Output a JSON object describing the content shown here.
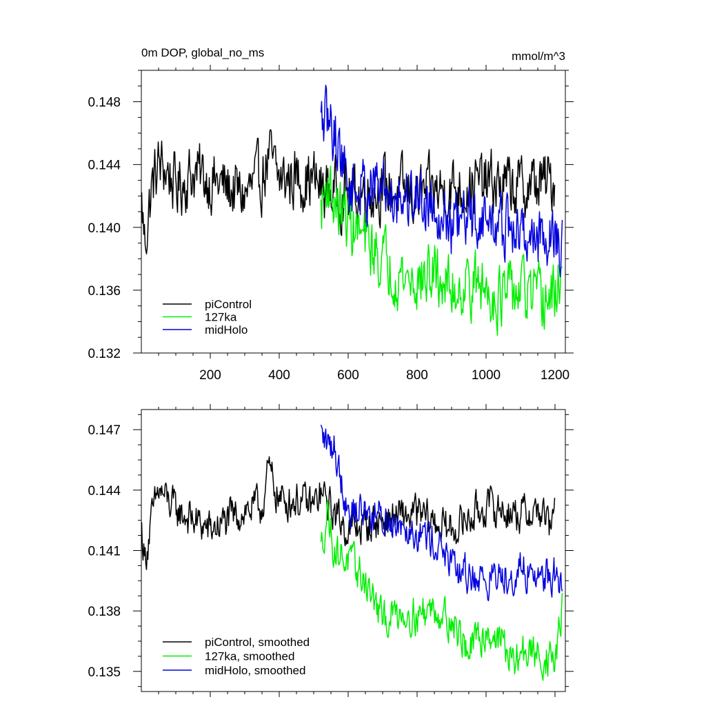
{
  "chart_data": [
    {
      "type": "line",
      "title": "0m DOP, global_no_ms",
      "units_label": "mmol/m^3",
      "xlim": [
        0,
        1230
      ],
      "ylim": [
        0.132,
        0.15
      ],
      "x_ticks": [
        200,
        400,
        600,
        800,
        1000,
        1200
      ],
      "x_tick_labels": [
        "200",
        "400",
        "600",
        "800",
        "1000",
        "1200"
      ],
      "y_ticks": [
        0.132,
        0.136,
        0.14,
        0.144,
        0.148
      ],
      "y_tick_labels": [
        "0.132",
        "0.136",
        "0.140",
        "0.144",
        "0.148"
      ],
      "legend_position": "bottom-left",
      "series": [
        {
          "name": "piControl",
          "color": "#000000",
          "noise": 0.0017,
          "points": [
            [
              1,
              0.1415
            ],
            [
              10,
              0.139
            ],
            [
              30,
              0.1425
            ],
            [
              50,
              0.144
            ],
            [
              80,
              0.1435
            ],
            [
              100,
              0.1425
            ],
            [
              150,
              0.1435
            ],
            [
              200,
              0.143
            ],
            [
              250,
              0.1425
            ],
            [
              300,
              0.142
            ],
            [
              350,
              0.1432
            ],
            [
              370,
              0.1445
            ],
            [
              400,
              0.143
            ],
            [
              450,
              0.1432
            ],
            [
              500,
              0.143
            ],
            [
              520,
              0.1425
            ],
            [
              600,
              0.142
            ],
            [
              700,
              0.1425
            ],
            [
              800,
              0.142
            ],
            [
              900,
              0.1425
            ],
            [
              1000,
              0.1428
            ],
            [
              1100,
              0.1425
            ],
            [
              1200,
              0.143
            ]
          ]
        },
        {
          "name": "127ka",
          "color": "#00ee00",
          "noise": 0.0017,
          "points": [
            [
              521,
              0.141
            ],
            [
              540,
              0.143
            ],
            [
              560,
              0.1415
            ],
            [
              600,
              0.1405
            ],
            [
              650,
              0.139
            ],
            [
              700,
              0.138
            ],
            [
              750,
              0.137
            ],
            [
              800,
              0.1365
            ],
            [
              850,
              0.137
            ],
            [
              900,
              0.136
            ],
            [
              950,
              0.1365
            ],
            [
              1000,
              0.136
            ],
            [
              1050,
              0.1355
            ],
            [
              1100,
              0.136
            ],
            [
              1150,
              0.1352
            ],
            [
              1200,
              0.1355
            ],
            [
              1222,
              0.1378
            ]
          ]
        },
        {
          "name": "midHolo",
          "color": "#0000dd",
          "noise": 0.0017,
          "points": [
            [
              521,
              0.1465
            ],
            [
              540,
              0.1468
            ],
            [
              560,
              0.146
            ],
            [
              580,
              0.1448
            ],
            [
              600,
              0.1425
            ],
            [
              650,
              0.1425
            ],
            [
              700,
              0.1425
            ],
            [
              750,
              0.142
            ],
            [
              800,
              0.142
            ],
            [
              850,
              0.1415
            ],
            [
              880,
              0.141
            ],
            [
              900,
              0.14
            ],
            [
              950,
              0.1405
            ],
            [
              1000,
              0.1405
            ],
            [
              1050,
              0.14
            ],
            [
              1100,
              0.1395
            ],
            [
              1150,
              0.1395
            ],
            [
              1200,
              0.1395
            ],
            [
              1222,
              0.1385
            ]
          ]
        }
      ]
    },
    {
      "type": "line",
      "xlim": [
        0,
        1230
      ],
      "ylim": [
        0.134,
        0.148
      ],
      "x_ticks": [
        200,
        400,
        600,
        800,
        1000,
        1200
      ],
      "x_tick_labels": [],
      "y_ticks": [
        0.135,
        0.138,
        0.141,
        0.144,
        0.147
      ],
      "y_tick_labels": [
        "0.135",
        "0.138",
        "0.141",
        "0.144",
        "0.147"
      ],
      "legend_position": "bottom-left",
      "series": [
        {
          "name": "piControl, smoothed",
          "color": "#000000",
          "noise": 0.0008,
          "points": [
            [
              1,
              0.142
            ],
            [
              10,
              0.1405
            ],
            [
              30,
              0.1425
            ],
            [
              50,
              0.144
            ],
            [
              100,
              0.143
            ],
            [
              150,
              0.1425
            ],
            [
              200,
              0.142
            ],
            [
              250,
              0.1425
            ],
            [
              300,
              0.143
            ],
            [
              350,
              0.1432
            ],
            [
              370,
              0.145
            ],
            [
              400,
              0.1435
            ],
            [
              450,
              0.1435
            ],
            [
              500,
              0.1432
            ],
            [
              520,
              0.1438
            ],
            [
              600,
              0.142
            ],
            [
              700,
              0.1425
            ],
            [
              800,
              0.1428
            ],
            [
              900,
              0.142
            ],
            [
              1000,
              0.1432
            ],
            [
              1100,
              0.1428
            ],
            [
              1150,
              0.143
            ],
            [
              1180,
              0.1425
            ],
            [
              1190,
              0.1415
            ],
            [
              1200,
              0.1445
            ]
          ]
        },
        {
          "name": "127ka, smoothed",
          "color": "#00ee00",
          "noise": 0.0008,
          "points": [
            [
              521,
              0.141
            ],
            [
              540,
              0.143
            ],
            [
              560,
              0.141
            ],
            [
              600,
              0.1405
            ],
            [
              650,
              0.1395
            ],
            [
              700,
              0.1375
            ],
            [
              750,
              0.138
            ],
            [
              800,
              0.1378
            ],
            [
              850,
              0.1382
            ],
            [
              900,
              0.1375
            ],
            [
              950,
              0.136
            ],
            [
              1000,
              0.137
            ],
            [
              1050,
              0.1365
            ],
            [
              1080,
              0.1352
            ],
            [
              1100,
              0.136
            ],
            [
              1150,
              0.1358
            ],
            [
              1200,
              0.1355
            ],
            [
              1222,
              0.138
            ]
          ]
        },
        {
          "name": "midHolo, smoothed",
          "color": "#0000dd",
          "noise": 0.0008,
          "points": [
            [
              521,
              0.1468
            ],
            [
              540,
              0.1462
            ],
            [
              560,
              0.1462
            ],
            [
              580,
              0.1445
            ],
            [
              600,
              0.143
            ],
            [
              650,
              0.143
            ],
            [
              700,
              0.1425
            ],
            [
              750,
              0.1425
            ],
            [
              800,
              0.142
            ],
            [
              850,
              0.1415
            ],
            [
              880,
              0.141
            ],
            [
              900,
              0.14
            ],
            [
              950,
              0.1398
            ],
            [
              1000,
              0.1395
            ],
            [
              1050,
              0.1398
            ],
            [
              1100,
              0.14
            ],
            [
              1150,
              0.1398
            ],
            [
              1200,
              0.1398
            ],
            [
              1222,
              0.1388
            ]
          ]
        }
      ]
    }
  ]
}
